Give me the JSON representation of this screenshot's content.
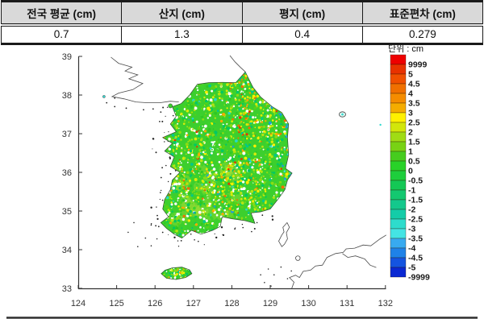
{
  "table": {
    "columns": [
      {
        "header": "전국 평균 (cm)",
        "value": "0.7"
      },
      {
        "header": "산지 (cm)",
        "value": "1.3"
      },
      {
        "header": "평지 (cm)",
        "value": "0.4"
      },
      {
        "header": "표준편차 (cm)",
        "value": "0.279"
      }
    ]
  },
  "map": {
    "unit_label": "단위 : cm",
    "x_ticks": [
      "124",
      "125",
      "126",
      "127",
      "128",
      "129",
      "130",
      "131",
      "132"
    ],
    "y_ticks": [
      "39",
      "38",
      "37",
      "36",
      "35",
      "34",
      "33"
    ],
    "colorbar": [
      {
        "label": "9999",
        "color": "#EE0000"
      },
      {
        "label": "5",
        "color": "#E83200"
      },
      {
        "label": "4.5",
        "color": "#F05000"
      },
      {
        "label": "4",
        "color": "#F07000"
      },
      {
        "label": "3.5",
        "color": "#F58C00"
      },
      {
        "label": "3",
        "color": "#F5AC00"
      },
      {
        "label": "2.5",
        "color": "#FFF000"
      },
      {
        "label": "2",
        "color": "#D2E60A"
      },
      {
        "label": "1.5",
        "color": "#A0DC14"
      },
      {
        "label": "1",
        "color": "#78D214"
      },
      {
        "label": "0.5",
        "color": "#46CC1E"
      },
      {
        "label": "0",
        "color": "#28D228"
      },
      {
        "label": "-0.5",
        "color": "#1ECE3C"
      },
      {
        "label": "-1",
        "color": "#14C855"
      },
      {
        "label": "-1.5",
        "color": "#14C870"
      },
      {
        "label": "-2",
        "color": "#14C88C"
      },
      {
        "label": "-2.5",
        "color": "#14CCA8"
      },
      {
        "label": "-3",
        "color": "#2EDCCC"
      },
      {
        "label": "-3.5",
        "color": "#44E4E4"
      },
      {
        "label": "-4",
        "color": "#38AAF0"
      },
      {
        "label": "-4.5",
        "color": "#1F82E8"
      },
      {
        "label": "-5",
        "color": "#1454E0"
      },
      {
        "label": "-9999",
        "color": "#0A28D2"
      }
    ]
  },
  "chart_data": {
    "type": "heatmap",
    "title": "",
    "xlabel": "",
    "ylabel": "",
    "x_range": [
      124,
      132
    ],
    "y_range": [
      33,
      39
    ],
    "grid": false,
    "legend_position": "right",
    "colorbar_unit": "cm",
    "colorbar_tick_labels": [
      "9999",
      "5",
      "4.5",
      "4",
      "3.5",
      "3",
      "2.5",
      "2",
      "1.5",
      "1",
      "0.5",
      "0",
      "-0.5",
      "-1",
      "-1.5",
      "-2",
      "-2.5",
      "-3",
      "-3.5",
      "-4",
      "-4.5",
      "-5",
      "-9999"
    ],
    "colorbar_colors": [
      "#EE0000",
      "#E83200",
      "#F05000",
      "#F07000",
      "#F58C00",
      "#F5AC00",
      "#FFF000",
      "#D2E60A",
      "#A0DC14",
      "#78D214",
      "#46CC1E",
      "#28D228",
      "#1ECE3C",
      "#14C855",
      "#14C870",
      "#14C88C",
      "#14CCA8",
      "#2EDCCC",
      "#44E4E4",
      "#38AAF0",
      "#1F82E8",
      "#1454E0",
      "#0A28D2"
    ],
    "summary_stats": {
      "national_average_cm": 0.7,
      "mountain_cm": 1.3,
      "flat_land_cm": 0.4,
      "standard_deviation_cm": 0.279
    }
  }
}
